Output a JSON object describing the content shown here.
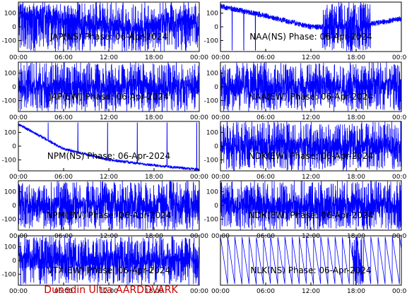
{
  "footer": "Dunedin Ultra AARDDVARK",
  "colors": {
    "trace": "#0000ff",
    "footer": "#cc0000",
    "frame": "#000000"
  },
  "chart_data": [
    {
      "type": "line",
      "title": "JAP(NS) Phase: 06-Apr-2024",
      "xlabel": "",
      "ylabel": "",
      "xticks": [
        "00:00",
        "06:00",
        "12:00",
        "18:00",
        "00:00"
      ],
      "ylim": [
        -180,
        180
      ],
      "yticks": [
        100,
        0,
        -100
      ],
      "series": [
        {
          "pattern": "dense",
          "x": [
            "00:00",
            "06:00",
            "12:00",
            "18:00",
            "24:00"
          ],
          "y": [
            120,
            60,
            0,
            0,
            40
          ]
        }
      ]
    },
    {
      "type": "line",
      "title": "NAA(NS) Phase: 06-Apr-2024",
      "xlabel": "",
      "ylabel": "",
      "xticks": [
        "00:00",
        "06:00",
        "12:00",
        "18:00",
        "00:00"
      ],
      "ylim": [
        -180,
        180
      ],
      "yticks": [
        100,
        0,
        -100
      ],
      "series": [
        {
          "pattern": "drift",
          "x": [
            "00:00",
            "06:00",
            "12:00",
            "18:00",
            "24:00"
          ],
          "y": [
            150,
            80,
            0,
            0,
            60
          ]
        }
      ]
    },
    {
      "type": "line",
      "title": "JAP(EW) Phase: 06-Apr-2024",
      "xlabel": "",
      "ylabel": "",
      "xticks": [
        "00:00",
        "06:00",
        "12:00",
        "18:00",
        "00:00"
      ],
      "ylim": [
        -180,
        180
      ],
      "yticks": [
        100,
        0,
        -100
      ],
      "series": [
        {
          "pattern": "dense",
          "x": [
            "00:00",
            "06:00",
            "12:00",
            "18:00",
            "24:00"
          ],
          "y": [
            0,
            0,
            0,
            0,
            0
          ]
        }
      ]
    },
    {
      "type": "line",
      "title": "NAA(EW) Phase: 06-Apr-2024",
      "xlabel": "",
      "ylabel": "",
      "xticks": [
        "00:00",
        "06:00",
        "12:00",
        "18:00",
        "00:00"
      ],
      "ylim": [
        -180,
        180
      ],
      "yticks": [
        100,
        0,
        -100
      ],
      "series": [
        {
          "pattern": "dense",
          "x": [
            "00:00",
            "06:00",
            "12:00",
            "18:00",
            "24:00"
          ],
          "y": [
            0,
            0,
            0,
            0,
            0
          ]
        }
      ]
    },
    {
      "type": "line",
      "title": "NPM(NS) Phase: 06-Apr-2024",
      "xlabel": "",
      "ylabel": "",
      "xticks": [
        "00:00",
        "06:00",
        "12:00",
        "18:00",
        "00:00"
      ],
      "ylim": [
        -180,
        180
      ],
      "yticks": [
        100,
        0,
        -100
      ],
      "series": [
        {
          "pattern": "ramps",
          "x": [
            "00:00",
            "06:00",
            "12:00",
            "18:00",
            "24:00"
          ],
          "y": [
            160,
            -20,
            -100,
            -140,
            -170
          ]
        }
      ]
    },
    {
      "type": "line",
      "title": "NDK(EW) Phase: 06-Apr-2024",
      "xlabel": "",
      "ylabel": "",
      "xticks": [
        "00:00",
        "06:00",
        "12:00",
        "18:00",
        "00:00"
      ],
      "ylim": [
        -180,
        180
      ],
      "yticks": [
        100,
        0,
        -100
      ],
      "series": [
        {
          "pattern": "dense",
          "x": [
            "00:00",
            "06:00",
            "12:00",
            "18:00",
            "24:00"
          ],
          "y": [
            0,
            0,
            0,
            0,
            0
          ]
        }
      ]
    },
    {
      "type": "line",
      "title": "NPM(EW) Phase: 06-Apr-2024",
      "xlabel": "",
      "ylabel": "",
      "xticks": [
        "00:00",
        "06:00",
        "12:00",
        "18:00",
        "00:00"
      ],
      "ylim": [
        -180,
        180
      ],
      "yticks": [
        100,
        0,
        -100
      ],
      "series": [
        {
          "pattern": "dense",
          "x": [
            "00:00",
            "06:00",
            "12:00",
            "18:00",
            "24:00"
          ],
          "y": [
            0,
            0,
            0,
            0,
            0
          ]
        }
      ]
    },
    {
      "type": "line",
      "title": "NDK(EW) Phase: 06-Apr-2024",
      "xlabel": "",
      "ylabel": "",
      "xticks": [
        "00:00",
        "06:00",
        "12:00",
        "18:00",
        "00:00"
      ],
      "ylim": [
        -180,
        180
      ],
      "yticks": [
        100,
        0,
        -100
      ],
      "series": [
        {
          "pattern": "dense",
          "x": [
            "00:00",
            "06:00",
            "12:00",
            "18:00",
            "24:00"
          ],
          "y": [
            0,
            0,
            0,
            0,
            0
          ]
        }
      ]
    },
    {
      "type": "line",
      "title": "VTX(EW) Phase: 06-Apr-2024",
      "xlabel": "",
      "ylabel": "",
      "xticks": [
        "00:00",
        "06:00",
        "12:00",
        "18:00",
        "00:00"
      ],
      "ylim": [
        -180,
        180
      ],
      "yticks": [
        100,
        0,
        -100
      ],
      "series": [
        {
          "pattern": "dense",
          "x": [
            "00:00",
            "06:00",
            "12:00",
            "18:00",
            "24:00"
          ],
          "y": [
            0,
            0,
            0,
            0,
            0
          ]
        }
      ]
    },
    {
      "type": "line",
      "title": "NLK(NS) Phase: 06-Apr-2024",
      "xlabel": "",
      "ylabel": "",
      "xticks": [
        "00:00",
        "06:00",
        "12:00",
        "18:00",
        "00:00"
      ],
      "ylim": [
        -180,
        180
      ],
      "yticks": [],
      "series": [
        {
          "pattern": "sawtooth",
          "x": [
            "00:00",
            "06:00",
            "12:00",
            "18:00",
            "24:00"
          ],
          "y": [
            170,
            -170,
            170,
            -170,
            170
          ]
        }
      ]
    }
  ]
}
